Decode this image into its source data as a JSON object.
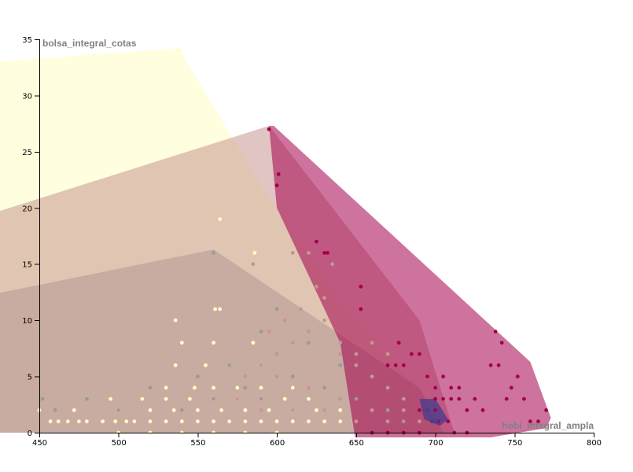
{
  "chart_data": {
    "type": "scatter",
    "xlabel": "hobi_integral_ampla",
    "ylabel": "bolsa_integral_cotas",
    "xlim": [
      450,
      800
    ],
    "ylim": [
      0,
      35
    ],
    "x_ticks": [
      "450",
      "500",
      "550",
      "600",
      "650",
      "700",
      "750",
      "800"
    ],
    "y_ticks": [
      "0",
      "5",
      "10",
      "15",
      "20",
      "25",
      "30",
      "35"
    ],
    "grid": false,
    "legend": "none",
    "series": [
      {
        "color": "#fffdc2",
        "hull": [
          [
            420,
            0
          ],
          [
            420,
            33
          ],
          [
            538,
            34.2
          ],
          [
            590,
            22
          ],
          [
            640,
            12
          ],
          [
            700,
            2
          ],
          [
            705,
            0
          ]
        ],
        "points": [
          [
            457,
            1
          ],
          [
            462,
            1
          ],
          [
            468,
            1
          ],
          [
            475,
            1
          ],
          [
            480,
            1
          ],
          [
            490,
            1
          ],
          [
            498,
            1
          ],
          [
            505,
            1
          ],
          [
            510,
            1
          ],
          [
            520,
            1
          ],
          [
            530,
            1
          ],
          [
            540,
            1
          ],
          [
            550,
            1
          ],
          [
            560,
            1
          ],
          [
            570,
            1
          ],
          [
            580,
            1
          ],
          [
            590,
            1
          ],
          [
            600,
            1
          ],
          [
            610,
            1
          ],
          [
            620,
            1
          ],
          [
            630,
            1
          ],
          [
            640,
            1
          ],
          [
            450,
            2
          ],
          [
            472,
            2
          ],
          [
            500,
            2
          ],
          [
            520,
            2
          ],
          [
            535,
            2
          ],
          [
            550,
            2
          ],
          [
            565,
            2
          ],
          [
            580,
            2
          ],
          [
            595,
            2
          ],
          [
            610,
            2
          ],
          [
            625,
            2
          ],
          [
            640,
            2
          ],
          [
            495,
            3
          ],
          [
            515,
            3
          ],
          [
            530,
            3
          ],
          [
            545,
            3
          ],
          [
            560,
            3
          ],
          [
            575,
            3
          ],
          [
            590,
            3
          ],
          [
            605,
            3
          ],
          [
            620,
            3
          ],
          [
            530,
            4
          ],
          [
            548,
            4
          ],
          [
            560,
            4
          ],
          [
            575,
            4
          ],
          [
            590,
            4
          ],
          [
            610,
            4
          ],
          [
            536,
            6
          ],
          [
            555,
            6
          ],
          [
            570,
            6
          ],
          [
            590,
            6
          ],
          [
            540,
            8
          ],
          [
            560,
            8
          ],
          [
            585,
            8
          ],
          [
            536,
            10
          ],
          [
            561,
            11
          ],
          [
            564,
            11
          ],
          [
            586,
            16
          ],
          [
            564,
            19
          ],
          [
            538,
            34
          ],
          [
            500,
            0
          ],
          [
            520,
            0
          ],
          [
            540,
            0
          ],
          [
            560,
            0
          ],
          [
            580,
            0
          ],
          [
            600,
            0
          ]
        ]
      },
      {
        "color": "#9a9a9a",
        "hull": [
          [
            420,
            0
          ],
          [
            420,
            12.3
          ],
          [
            560,
            16.3
          ],
          [
            690,
            4
          ],
          [
            705,
            0
          ]
        ],
        "points": [
          [
            452,
            3
          ],
          [
            460,
            2
          ],
          [
            480,
            3
          ],
          [
            500,
            2
          ],
          [
            520,
            4
          ],
          [
            540,
            2
          ],
          [
            550,
            5
          ],
          [
            560,
            3
          ],
          [
            570,
            6
          ],
          [
            580,
            4
          ],
          [
            590,
            3
          ],
          [
            600,
            7
          ],
          [
            610,
            5
          ],
          [
            620,
            8
          ],
          [
            630,
            4
          ],
          [
            640,
            6
          ],
          [
            650,
            3
          ],
          [
            660,
            5
          ],
          [
            670,
            2
          ],
          [
            680,
            1
          ],
          [
            560,
            16
          ],
          [
            600,
            11
          ],
          [
            590,
            9
          ]
        ]
      },
      {
        "color": "#c89590",
        "hull": [
          [
            420,
            0
          ],
          [
            420,
            19.5
          ],
          [
            595,
            27.3
          ],
          [
            690,
            10
          ],
          [
            712,
            0
          ]
        ],
        "points": [
          [
            580,
            5
          ],
          [
            590,
            6
          ],
          [
            600,
            7
          ],
          [
            610,
            8
          ],
          [
            620,
            9
          ],
          [
            630,
            10
          ],
          [
            640,
            8
          ],
          [
            650,
            6
          ],
          [
            660,
            5
          ],
          [
            670,
            4
          ],
          [
            680,
            3
          ],
          [
            600,
            5
          ],
          [
            620,
            4
          ],
          [
            640,
            3
          ],
          [
            660,
            2
          ],
          [
            680,
            2
          ],
          [
            610,
            16
          ],
          [
            620,
            16
          ],
          [
            625,
            13
          ],
          [
            630,
            12
          ],
          [
            635,
            15
          ],
          [
            615,
            11
          ],
          [
            605,
            10
          ],
          [
            585,
            15
          ],
          [
            595,
            9
          ],
          [
            640,
            7
          ],
          [
            650,
            7
          ],
          [
            660,
            8
          ],
          [
            670,
            7
          ],
          [
            575,
            3
          ],
          [
            590,
            2
          ],
          [
            610,
            2
          ],
          [
            630,
            2
          ],
          [
            650,
            1
          ],
          [
            670,
            1
          ],
          [
            690,
            1
          ]
        ]
      },
      {
        "color": "#a4004c",
        "hull": [
          [
            595,
            27.3
          ],
          [
            598,
            27.3
          ],
          [
            760,
            6.3
          ],
          [
            773,
            1.3
          ],
          [
            770,
            0.4
          ],
          [
            710,
            -1
          ],
          [
            650,
            -1
          ],
          [
            640,
            8
          ],
          [
            600,
            20
          ]
        ],
        "points": [
          [
            595,
            27
          ],
          [
            601,
            23
          ],
          [
            600,
            22
          ],
          [
            625,
            17
          ],
          [
            630,
            16
          ],
          [
            632,
            16
          ],
          [
            653,
            13
          ],
          [
            653,
            11
          ],
          [
            677,
            8
          ],
          [
            670,
            6
          ],
          [
            675,
            6
          ],
          [
            680,
            6
          ],
          [
            685,
            7
          ],
          [
            690,
            7
          ],
          [
            695,
            5
          ],
          [
            700,
            4
          ],
          [
            705,
            5
          ],
          [
            710,
            4
          ],
          [
            715,
            4
          ],
          [
            720,
            2
          ],
          [
            725,
            3
          ],
          [
            730,
            2
          ],
          [
            735,
            6
          ],
          [
            740,
            6
          ],
          [
            742,
            8
          ],
          [
            738,
            9
          ],
          [
            745,
            3
          ],
          [
            748,
            4
          ],
          [
            752,
            5
          ],
          [
            756,
            3
          ],
          [
            760,
            1
          ],
          [
            765,
            1
          ],
          [
            770,
            2
          ],
          [
            700,
            3
          ],
          [
            705,
            3
          ],
          [
            710,
            3
          ],
          [
            690,
            2
          ],
          [
            695,
            2
          ],
          [
            698,
            1
          ],
          [
            702,
            1
          ],
          [
            708,
            1
          ],
          [
            712,
            0
          ],
          [
            720,
            0
          ],
          [
            690,
            0
          ],
          [
            680,
            0
          ],
          [
            670,
            0
          ],
          [
            660,
            0
          ],
          [
            700,
            2
          ],
          [
            715,
            3
          ]
        ]
      },
      {
        "color": "#4a3c8c",
        "hull": [
          [
            690,
            3
          ],
          [
            700,
            3
          ],
          [
            708,
            1.2
          ],
          [
            703,
            0.6
          ],
          [
            693,
            1.2
          ]
        ],
        "points": [
          [
            695,
            2
          ],
          [
            698,
            1
          ],
          [
            701,
            1
          ]
        ]
      }
    ]
  }
}
